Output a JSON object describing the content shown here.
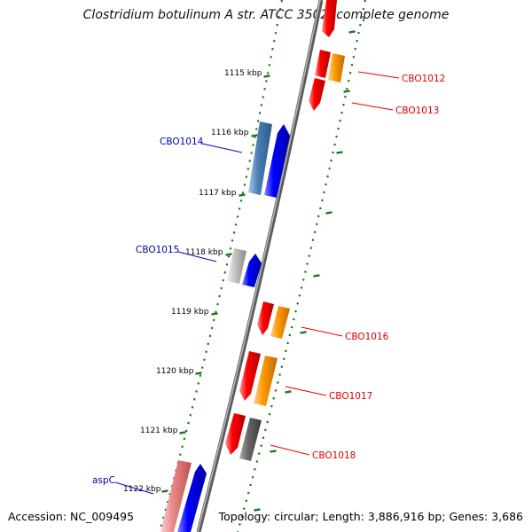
{
  "title": "Clostridium botulinum A str. ATCC 3502, complete genome",
  "footer": {
    "accession": "Accession: NC_009495",
    "topology": "Topology: circular; Length: 3,886,916 bp; Genes: 3,686"
  },
  "ticks": [
    {
      "label": "1115 kbp",
      "kbp": 1115
    },
    {
      "label": "1116 kbp",
      "kbp": 1116
    },
    {
      "label": "1117 kbp",
      "kbp": 1117
    },
    {
      "label": "1118 kbp",
      "kbp": 1118
    },
    {
      "label": "1119 kbp",
      "kbp": 1119
    },
    {
      "label": "1120 kbp",
      "kbp": 1120
    },
    {
      "label": "1121 kbp",
      "kbp": 1121
    },
    {
      "label": "1122 kbp",
      "kbp": 1122
    }
  ],
  "genes": [
    {
      "name": "CBO1012",
      "strand": "forward",
      "color": "#dd0000"
    },
    {
      "name": "CBO1013",
      "strand": "forward",
      "color": "#dd0000"
    },
    {
      "name": "CBO1014",
      "strand": "reverse",
      "color": "#0000aa"
    },
    {
      "name": "CBO1015",
      "strand": "reverse",
      "color": "#0000aa"
    },
    {
      "name": "CBO1016",
      "strand": "forward",
      "color": "#dd0000"
    },
    {
      "name": "CBO1017",
      "strand": "forward",
      "color": "#dd0000"
    },
    {
      "name": "CBO1018",
      "strand": "forward",
      "color": "#dd0000"
    },
    {
      "name": "aspC",
      "strand": "reverse",
      "color": "#0000aa"
    }
  ],
  "colors": {
    "backbone": "#888888",
    "tick_mark": "#1a7a1a",
    "feature_red": "#ff0000",
    "feature_orange": "#ff9900",
    "feature_blue": "#0000ff",
    "feature_steelblue": "#4a7fb5",
    "feature_grey": "#c0c0c0",
    "feature_darkgrey": "#666666",
    "feature_pink": "#e88888"
  }
}
